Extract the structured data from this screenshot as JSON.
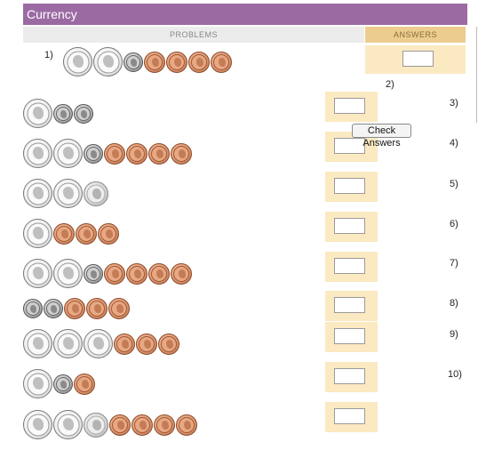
{
  "title": "Currency",
  "headers": {
    "problems": "PROBLEMS",
    "answers": "ANSWERS"
  },
  "check_button": "Check Answers",
  "problems": [
    {
      "number": "1)",
      "coins": [
        "quarter",
        "quarter",
        "dime",
        "penny",
        "penny",
        "penny",
        "penny"
      ]
    },
    {
      "number": "2)",
      "coins": [
        "quarter",
        "dime",
        "dime"
      ]
    },
    {
      "number": "3)",
      "coins": [
        "quarter",
        "quarter",
        "dime",
        "penny",
        "penny",
        "penny",
        "penny"
      ]
    },
    {
      "number": "4)",
      "coins": [
        "quarter",
        "quarter",
        "nickel"
      ]
    },
    {
      "number": "5)",
      "coins": [
        "quarter",
        "penny",
        "penny",
        "penny"
      ]
    },
    {
      "number": "6)",
      "coins": [
        "quarter",
        "quarter",
        "dime",
        "penny",
        "penny",
        "penny",
        "penny"
      ]
    },
    {
      "number": "7)",
      "coins": [
        "dime",
        "dime",
        "penny",
        "penny",
        "penny"
      ]
    },
    {
      "number": "8)",
      "coins": [
        "quarter",
        "quarter",
        "quarter",
        "penny",
        "penny",
        "penny"
      ]
    },
    {
      "number": "9)",
      "coins": [
        "quarter",
        "dime",
        "penny"
      ]
    },
    {
      "number": "10)",
      "coins": [
        "quarter",
        "quarter",
        "nickel",
        "penny",
        "penny",
        "penny",
        "penny"
      ]
    }
  ],
  "answers": [
    "",
    "",
    "",
    "",
    "",
    "",
    "",
    "",
    "",
    ""
  ]
}
